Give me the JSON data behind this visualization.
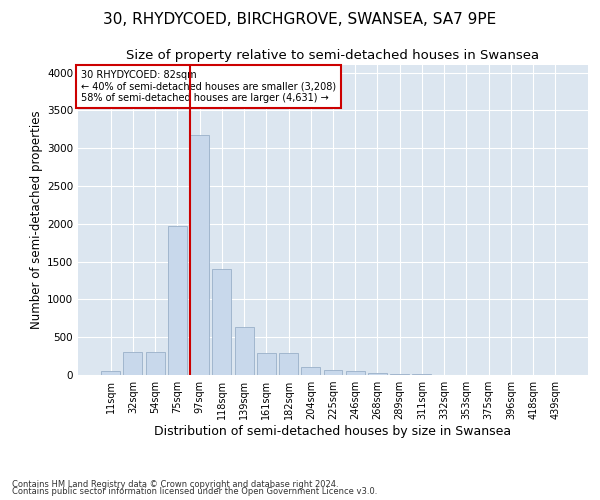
{
  "title": "30, RHYDYCOED, BIRCHGROVE, SWANSEA, SA7 9PE",
  "subtitle": "Size of property relative to semi-detached houses in Swansea",
  "xlabel": "Distribution of semi-detached houses by size in Swansea",
  "ylabel": "Number of semi-detached properties",
  "footer_line1": "Contains HM Land Registry data © Crown copyright and database right 2024.",
  "footer_line2": "Contains public sector information licensed under the Open Government Licence v3.0.",
  "bar_labels": [
    "11sqm",
    "32sqm",
    "54sqm",
    "75sqm",
    "97sqm",
    "118sqm",
    "139sqm",
    "161sqm",
    "182sqm",
    "204sqm",
    "225sqm",
    "246sqm",
    "268sqm",
    "289sqm",
    "311sqm",
    "332sqm",
    "353sqm",
    "375sqm",
    "396sqm",
    "418sqm",
    "439sqm"
  ],
  "bar_values": [
    50,
    310,
    310,
    1970,
    3170,
    1400,
    640,
    295,
    295,
    110,
    65,
    50,
    30,
    15,
    8,
    4,
    2,
    2,
    1,
    1,
    1
  ],
  "bar_color": "#c8d8eb",
  "bar_edge_color": "#9ab0c8",
  "red_line_x": 3.57,
  "annotation_text_line1": "30 RHYDYCOED: 82sqm",
  "annotation_text_line2": "← 40% of semi-detached houses are smaller (3,208)",
  "annotation_text_line3": "58% of semi-detached houses are larger (4,631) →",
  "annotation_box_color": "#ffffff",
  "annotation_box_edge_color": "#cc0000",
  "red_line_color": "#cc0000",
  "ylim": [
    0,
    4100
  ],
  "yticks": [
    0,
    500,
    1000,
    1500,
    2000,
    2500,
    3000,
    3500,
    4000
  ],
  "figure_bg": "#ffffff",
  "plot_bg": "#dce6f0",
  "title_fontsize": 11,
  "subtitle_fontsize": 9.5,
  "xlabel_fontsize": 9,
  "ylabel_fontsize": 8.5,
  "tick_fontsize": 7,
  "annotation_fontsize": 7,
  "footer_fontsize": 6
}
